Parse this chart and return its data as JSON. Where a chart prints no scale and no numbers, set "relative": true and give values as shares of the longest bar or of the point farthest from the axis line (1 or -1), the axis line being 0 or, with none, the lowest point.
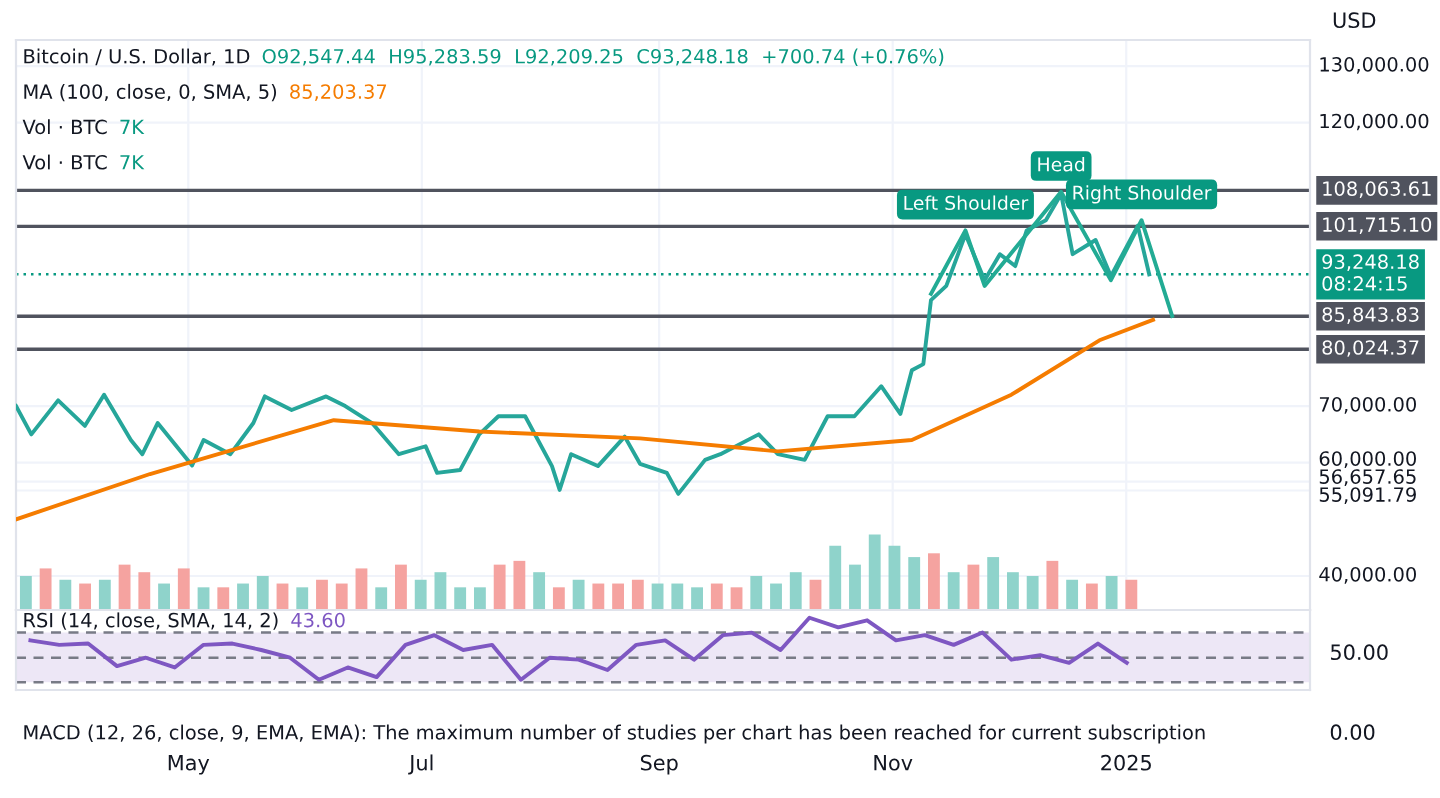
{
  "chart_data": [
    {
      "type": "line",
      "ylabel": "USD",
      "annotations": [
        "Bitcoin / U.S. Dollar, 1D",
        "O92,547.44  H95,283.59  L92,209.25  C93,248.18  +700.74 (+0.76%)",
        "MA (100, close, 0, SMA, 5)",
        "85,203.37",
        "Vol · BTC",
        "7K",
        "Vol · BTC",
        "7K",
        {
          "text": "Left Shoulder",
          "x": "2024-11-20",
          "y": 101000
        },
        {
          "text": "Head",
          "x": "2024-12-15",
          "y": 107800
        },
        {
          "text": "Right Shoulder",
          "x": "2025-01-05",
          "y": 102800
        }
      ],
      "series": [
        {
          "color": "#26a69a",
          "x": [
            "2024-03-17",
            "2024-03-21",
            "2024-03-28",
            "2024-04-04",
            "2024-04-09",
            "2024-04-16",
            "2024-04-19",
            "2024-04-23",
            "2024-05-02",
            "2024-05-05",
            "2024-05-12",
            "2024-05-18",
            "2024-05-21",
            "2024-05-28",
            "2024-06-06",
            "2024-06-11",
            "2024-06-18",
            "2024-06-25",
            "2024-07-02",
            "2024-07-05",
            "2024-07-11",
            "2024-07-16",
            "2024-07-21",
            "2024-07-28",
            "2024-08-04",
            "2024-08-06",
            "2024-08-09",
            "2024-08-16",
            "2024-08-23",
            "2024-08-27",
            "2024-09-03",
            "2024-09-06",
            "2024-09-13",
            "2024-09-17",
            "2024-09-27",
            "2024-10-02",
            "2024-10-09",
            "2024-10-15",
            "2024-10-22",
            "2024-10-29",
            "2024-11-03",
            "2024-11-06",
            "2024-11-09",
            "2024-11-11",
            "2024-11-15",
            "2024-11-20",
            "2024-11-25",
            "2024-11-29",
            "2024-12-03",
            "2024-12-06",
            "2024-12-11",
            "2024-12-15",
            "2024-12-18",
            "2024-12-24",
            "2024-12-28",
            "2025-01-04",
            "2025-01-07"
          ],
          "values": [
            70000,
            65000,
            71000,
            66500,
            72000,
            64000,
            61500,
            67000,
            59500,
            64000,
            61500,
            67000,
            71700,
            69300,
            71700,
            70000,
            67000,
            61500,
            62900,
            58200,
            58700,
            65000,
            68200,
            68200,
            59400,
            55200,
            61500,
            59400,
            64600,
            59800,
            58200,
            54500,
            60500,
            61500,
            65000,
            61500,
            60500,
            68200,
            68200,
            73500,
            68600,
            76300,
            77400,
            88700,
            91200,
            100300,
            92200,
            96800,
            94700,
            101000,
            102800,
            107400,
            96800,
            99300,
            92900,
            101800,
            93248.18
          ]
        },
        {
          "color": "#f57c00",
          "x": [
            "2024-03-17",
            "2024-04-21",
            "2024-06-08",
            "2024-07-16",
            "2024-08-27",
            "2024-10-02",
            "2024-11-06",
            "2024-12-02",
            "2024-12-25",
            "2025-01-08"
          ],
          "values": [
            50000,
            58000,
            67500,
            65500,
            64300,
            62000,
            64000,
            72000,
            81600,
            85203.37
          ]
        },
        {
          "color": "#22ab94",
          "x": [
            "2024-11-11",
            "2024-11-20",
            "2024-11-25",
            "2024-12-15",
            "2024-12-28",
            "2025-01-05",
            "2025-01-13"
          ],
          "values": [
            89800,
            101000,
            91200,
            107800,
            92200,
            102800,
            85900
          ]
        }
      ],
      "xlim": [
        "2024-03-17",
        "2025-02-18"
      ],
      "xticks": [
        {
          "value": "2024-05-01",
          "label": "May"
        },
        {
          "value": "2024-07-01",
          "label": "Jul"
        },
        {
          "value": "2024-09-01",
          "label": "Sep"
        },
        {
          "value": "2024-11-01",
          "label": "Nov"
        },
        {
          "value": "2025-01-01",
          "label": "2025"
        }
      ],
      "ylim": [
        34000,
        134600
      ],
      "yticks": [
        {
          "value": 40000,
          "label": "40,000.00"
        },
        {
          "value": 55091.79,
          "label": "55,091.79"
        },
        {
          "value": 56657.65,
          "label": "56,657.65"
        },
        {
          "value": 60000,
          "label": "60,000.00"
        },
        {
          "value": 70000,
          "label": "70,000.00"
        },
        {
          "value": 120000,
          "label": "120,000.00"
        },
        {
          "value": 130000,
          "label": "130,000.00"
        }
      ],
      "ref_lines": [
        {
          "axis": "y",
          "value": 108063.61,
          "label": "108,063.61",
          "color": "#50535e"
        },
        {
          "axis": "y",
          "value": 101715.1,
          "label": "101,715.10",
          "color": "#50535e"
        },
        {
          "axis": "y",
          "value": 85843.83,
          "label": "85,843.83",
          "color": "#50535e"
        },
        {
          "axis": "y",
          "value": 80024.37,
          "label": "80,024.37",
          "color": "#50535e"
        },
        {
          "axis": "y",
          "value": 93248.18,
          "label": "93,248.18\n08:24:15",
          "color": "#089981",
          "line_style": "dotted"
        }
      ],
      "grid": true
    },
    {
      "type": "bar",
      "relative": true,
      "categories": [
        null,
        null,
        null,
        null,
        null,
        null,
        null,
        null,
        null,
        null,
        null,
        null,
        null,
        null,
        null,
        null,
        null,
        null,
        null,
        null,
        null,
        null,
        null,
        null,
        null,
        null,
        null,
        null,
        null,
        null,
        null,
        null,
        null,
        null,
        null,
        null,
        null,
        null,
        null,
        null,
        null,
        null,
        null,
        null,
        null,
        null,
        null,
        null,
        null,
        null,
        null,
        null,
        null,
        null,
        null,
        null,
        null
      ],
      "values": [
        0.45,
        0.55,
        0.4,
        0.35,
        0.4,
        0.6,
        0.5,
        0.35,
        0.55,
        0.3,
        0.3,
        0.35,
        0.45,
        0.35,
        0.3,
        0.4,
        0.35,
        0.55,
        0.3,
        0.6,
        0.4,
        0.5,
        0.3,
        0.3,
        0.6,
        0.65,
        0.5,
        0.3,
        0.4,
        0.35,
        0.35,
        0.4,
        0.35,
        0.35,
        0.3,
        0.35,
        0.3,
        0.45,
        0.35,
        0.5,
        0.4,
        0.85,
        0.6,
        1,
        0.85,
        0.7,
        0.75,
        0.5,
        0.6,
        0.7,
        0.5,
        0.45,
        0.65,
        0.4,
        0.35,
        0.45,
        0.4
      ],
      "colors": [
        "#8fd3cb",
        "#f5a3a0",
        "#8fd3cb",
        "#f5a3a0",
        "#8fd3cb",
        "#f5a3a0",
        "#f5a3a0",
        "#8fd3cb",
        "#f5a3a0",
        "#8fd3cb",
        "#f5a3a0",
        "#8fd3cb",
        "#8fd3cb",
        "#f5a3a0",
        "#8fd3cb",
        "#f5a3a0",
        "#f5a3a0",
        "#f5a3a0",
        "#8fd3cb",
        "#f5a3a0",
        "#8fd3cb",
        "#8fd3cb",
        "#8fd3cb",
        "#8fd3cb",
        "#f5a3a0",
        "#f5a3a0",
        "#8fd3cb",
        "#f5a3a0",
        "#8fd3cb",
        "#f5a3a0",
        "#f5a3a0",
        "#f5a3a0",
        "#8fd3cb",
        "#8fd3cb",
        "#8fd3cb",
        "#f5a3a0",
        "#f5a3a0",
        "#8fd3cb",
        "#8fd3cb",
        "#8fd3cb",
        "#f5a3a0",
        "#8fd3cb",
        "#8fd3cb",
        "#8fd3cb",
        "#8fd3cb",
        "#8fd3cb",
        "#f5a3a0",
        "#8fd3cb",
        "#f5a3a0",
        "#8fd3cb",
        "#8fd3cb",
        "#8fd3cb",
        "#f5a3a0",
        "#8fd3cb",
        "#f5a3a0",
        "#8fd3cb",
        "#f5a3a0"
      ],
      "tick_labels": false
    },
    {
      "type": "line",
      "relative": true,
      "annotations": [
        "RSI (14, close, SMA, 14, 2)",
        "43.60",
        "50.00",
        "MACD (12, 26, close, 9, EMA, EMA): The maximum number of studies per chart has been reached for current subscription",
        "0.00"
      ],
      "categories": [
        null,
        null,
        null,
        null,
        null,
        null,
        null,
        null,
        null,
        null,
        null,
        null,
        null,
        null,
        null,
        null,
        null,
        null,
        null,
        null,
        null,
        null,
        null,
        null,
        null,
        null,
        null,
        null,
        null,
        null,
        null,
        null,
        null,
        null,
        null,
        null,
        null,
        null,
        null
      ],
      "series": [
        {
          "color": "#7e57c2",
          "values": [
            0.65,
            0.58,
            0.6,
            0.25,
            0.38,
            0.23,
            0.58,
            0.6,
            0.5,
            0.38,
            0.04,
            0.23,
            0.08,
            0.58,
            0.73,
            0.5,
            0.58,
            0.04,
            0.38,
            0.35,
            0.19,
            0.58,
            0.65,
            0.35,
            0.73,
            0.77,
            0.5,
            1,
            0.85,
            0.96,
            0.65,
            0.73,
            0.58,
            0.77,
            0.35,
            0.42,
            0.3,
            0.6,
            0.3
          ]
        }
      ],
      "bands": [
        {
          "axis": "y",
          "from": 0,
          "to": 0.77,
          "color": "#ede7f6"
        }
      ],
      "ref_lines": [
        {
          "axis": "y",
          "value": 0.77,
          "color": "#787b86",
          "line_style": "dashed"
        },
        {
          "axis": "y",
          "value": 0.38,
          "color": "#787b86",
          "line_style": "dashed"
        },
        {
          "axis": "y",
          "value": 0,
          "color": "#787b86",
          "line_style": "dashed"
        }
      ],
      "tick_labels": false
    }
  ]
}
